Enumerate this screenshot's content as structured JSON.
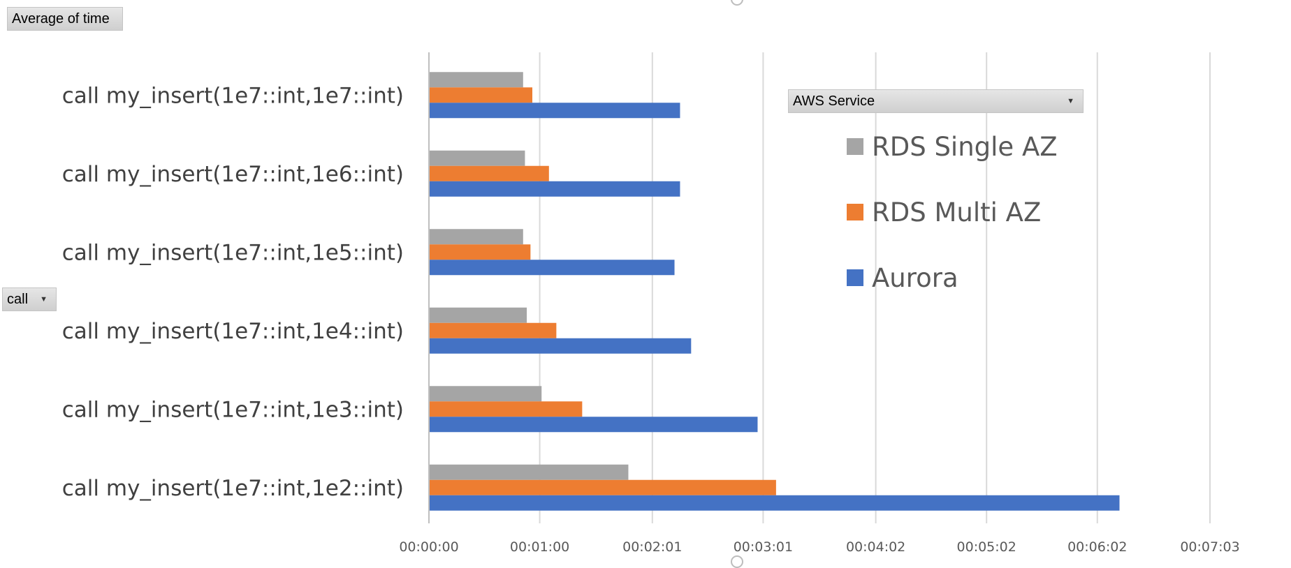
{
  "pivot": {
    "value_field": "Average of time",
    "axis_field": "call",
    "legend_field": "AWS Service"
  },
  "colors": {
    "RDS Single AZ": "#a5a5a5",
    "RDS Multi AZ": "#ed7d31",
    "Aurora": "#4472c4",
    "gridline": "#d9d9d9",
    "axis_line": "#bfbfbf"
  },
  "chart_data": {
    "type": "bar",
    "orientation": "horizontal",
    "title": "",
    "xlabel": "",
    "ylabel": "",
    "x_unit": "seconds",
    "xlim": [
      0,
      423
    ],
    "x_ticks": [
      0,
      60,
      121,
      181,
      242,
      302,
      362,
      423
    ],
    "x_tick_labels": [
      "00:00:00",
      "00:01:00",
      "00:02:01",
      "00:03:01",
      "00:04:02",
      "00:05:02",
      "00:06:02",
      "00:07:03"
    ],
    "categories": [
      "call my_insert(1e7::int,1e7::int)",
      "call my_insert(1e7::int,1e6::int)",
      "call my_insert(1e7::int,1e5::int)",
      "call my_insert(1e7::int,1e4::int)",
      "call my_insert(1e7::int,1e3::int)",
      "call my_insert(1e7::int,1e2::int)"
    ],
    "series": [
      {
        "name": "RDS Single AZ",
        "values": [
          51,
          52,
          51,
          53,
          61,
          108
        ]
      },
      {
        "name": "RDS Multi AZ",
        "values": [
          56,
          65,
          55,
          69,
          83,
          188
        ]
      },
      {
        "name": "Aurora",
        "values": [
          136,
          136,
          133,
          142,
          178,
          374
        ]
      }
    ],
    "legend": {
      "position": "top-right",
      "order": [
        "RDS Single AZ",
        "RDS Multi AZ",
        "Aurora"
      ]
    },
    "grid": true
  }
}
